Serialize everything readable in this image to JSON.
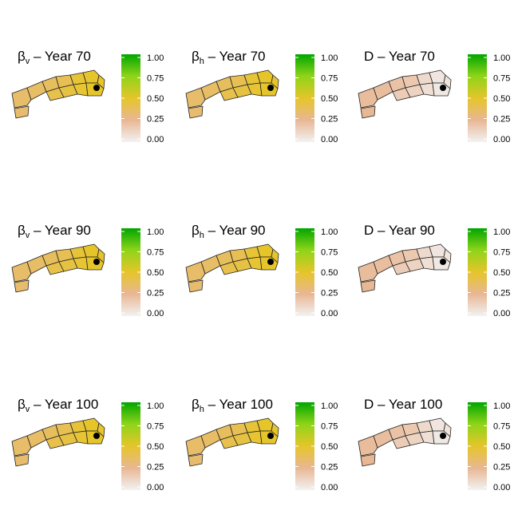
{
  "chart_data": {
    "type": "choropleth-map-grid",
    "color_scale": {
      "ticks": [
        "1.00",
        "0.75",
        "0.50",
        "0.25",
        "0.00"
      ],
      "tick_values": [
        1.0,
        0.75,
        0.5,
        0.25,
        0.0
      ],
      "range": [
        0,
        1
      ],
      "stops": [
        {
          "value": 0.0,
          "color": "#f2f2f2"
        },
        {
          "value": 0.25,
          "color": "#e8b794"
        },
        {
          "value": 0.5,
          "color": "#e6c52a"
        },
        {
          "value": 0.75,
          "color": "#8fd41a"
        },
        {
          "value": 1.0,
          "color": "#00a600"
        }
      ]
    },
    "marker": "point",
    "panels": [
      {
        "symbol": "β",
        "sub": "v",
        "label": " – Year ",
        "year": "70",
        "values": [
          0.34,
          0.35,
          0.36,
          0.38,
          0.4,
          0.42,
          0.44,
          0.47,
          0.48,
          0.5,
          0.5,
          0.49
        ]
      },
      {
        "symbol": "β",
        "sub": "h",
        "label": " – Year ",
        "year": "70",
        "values": [
          0.34,
          0.35,
          0.36,
          0.38,
          0.4,
          0.42,
          0.44,
          0.47,
          0.48,
          0.5,
          0.5,
          0.49
        ]
      },
      {
        "symbol": "D",
        "sub": "",
        "label": " – Year ",
        "year": "70",
        "values": [
          0.25,
          0.23,
          0.22,
          0.2,
          0.18,
          0.16,
          0.13,
          0.1,
          0.08,
          0.05,
          0.04,
          0.06
        ]
      },
      {
        "symbol": "β",
        "sub": "v",
        "label": " – Year ",
        "year": "90",
        "values": [
          0.34,
          0.35,
          0.36,
          0.38,
          0.4,
          0.42,
          0.44,
          0.47,
          0.48,
          0.5,
          0.5,
          0.49
        ]
      },
      {
        "symbol": "β",
        "sub": "h",
        "label": " – Year ",
        "year": "90",
        "values": [
          0.34,
          0.35,
          0.36,
          0.38,
          0.4,
          0.42,
          0.44,
          0.47,
          0.48,
          0.5,
          0.5,
          0.49
        ]
      },
      {
        "symbol": "D",
        "sub": "",
        "label": " – Year ",
        "year": "90",
        "values": [
          0.25,
          0.23,
          0.22,
          0.2,
          0.18,
          0.16,
          0.13,
          0.1,
          0.08,
          0.05,
          0.04,
          0.06
        ]
      },
      {
        "symbol": "β",
        "sub": "v",
        "label": " – Year ",
        "year": "100",
        "values": [
          0.34,
          0.35,
          0.36,
          0.38,
          0.4,
          0.42,
          0.44,
          0.47,
          0.48,
          0.5,
          0.5,
          0.49
        ]
      },
      {
        "symbol": "β",
        "sub": "h",
        "label": " – Year ",
        "year": "100",
        "values": [
          0.34,
          0.35,
          0.36,
          0.38,
          0.4,
          0.42,
          0.44,
          0.47,
          0.48,
          0.5,
          0.5,
          0.49
        ]
      },
      {
        "symbol": "D",
        "sub": "",
        "label": " – Year ",
        "year": "100",
        "values": [
          0.25,
          0.23,
          0.22,
          0.2,
          0.18,
          0.16,
          0.13,
          0.1,
          0.08,
          0.05,
          0.04,
          0.06
        ]
      }
    ]
  }
}
